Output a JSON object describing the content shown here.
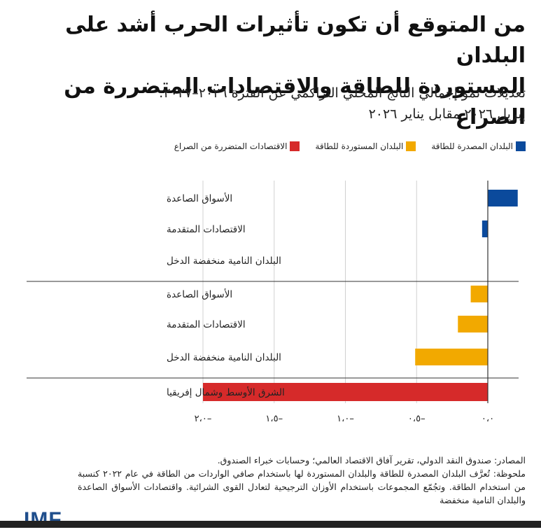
{
  "header": {
    "title_line1": "من المتوقع أن تكون تأثيرات الحرب أشد على البلدان",
    "title_line2": "المستوردة للطاقة والاقتصادات المتضررة من الصراع",
    "subtitle_line1": "تعديلات نمو إجمالي الناتج المحلي التراكمي عن الفترة ٢٠٢٦–٢٠٢٧:",
    "subtitle_line2": "إبريل ٢٠٢٦ مقابل يناير ٢٠٢٦"
  },
  "colors": {
    "exporters": "#0b4a9c",
    "importers": "#f2a900",
    "conflict": "#d62a2a",
    "grid": "#d0d0d0",
    "axis": "#333333"
  },
  "legend": [
    {
      "label": "البلدان المصدرة للطاقة",
      "color": "#0b4a9c"
    },
    {
      "label": "البلدان المستوردة للطاقة",
      "color": "#f2a900"
    },
    {
      "label": "الاقتصادات المتضررة من الصراع",
      "color": "#d62a2a"
    }
  ],
  "chart_data": {
    "type": "bar",
    "orientation": "horizontal",
    "categories": [
      "الأسواق الصاعدة",
      "الاقتصادات المتقدمة",
      "البلدان النامية منخفضة الدخل",
      "الأسواق الصاعدة",
      "الاقتصادات المتقدمة",
      "البلدان النامية منخفضة الدخل",
      "الشرق الأوسط وشمال إفريقيا"
    ],
    "groups": [
      "exporters",
      "exporters",
      "exporters",
      "importers",
      "importers",
      "importers",
      "conflict"
    ],
    "values": [
      0.21,
      -0.04,
      0.0,
      -0.12,
      -0.21,
      -0.51,
      -2.0
    ],
    "xlim": [
      -2.0,
      0.21
    ],
    "ticks": [
      -2.0,
      -1.5,
      -1.0,
      -0.5,
      0.0
    ],
    "tick_labels": [
      "٢،٠–",
      "١،٥–",
      "١،٠–",
      "٠،٥–",
      "٠،٠"
    ],
    "grid": true
  },
  "notes": {
    "sources": "المصادر: صندوق النقد الدولي، تقرير آفاق الاقتصاد العالمي؛ وحسابات خبراء الصندوق.",
    "note_body": "ملحوظة: تُعرَّف البلدان المصدرة للطاقة والبلدان المستوردة لها باستخدام صافي الواردات من الطاقة في عام ٢٠٢٢ كنسبة من استخدام الطاقة. وتجُمّع المجموعات باستخدام الأوزان الترجيحية لتعادل القوى الشرائية. واقتصادات الأسواق الصاعدة والبلدان النامية منخفضة"
  },
  "logo": "IMF"
}
